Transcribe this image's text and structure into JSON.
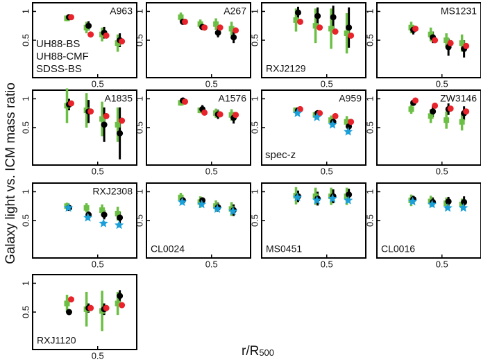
{
  "chart_data": {
    "type": "scatter",
    "ylabel": "Galaxy light vs. ICM mass ratio",
    "xlabel": {
      "main": "r/R",
      "sub": "500"
    },
    "x": [
      0.28,
      0.43,
      0.55,
      0.67
    ],
    "xlim": [
      0,
      0.8
    ],
    "xticks": [
      0.5
    ],
    "ylim": [
      -0.15,
      1.15
    ],
    "yticks": [
      1,
      0.5
    ],
    "series": [
      {
        "name": "UH88-BS",
        "color": "#000000",
        "marker": "circle",
        "legend_panel": 0
      },
      {
        "name": "UH88-CMF",
        "color": "#6cbf45",
        "marker": "square",
        "legend_panel": 0
      },
      {
        "name": "SDSS-BS",
        "color": "#e8232b",
        "marker": "circle",
        "legend_panel": 0
      },
      {
        "name": "spec-z",
        "color": "#1a9fd9",
        "marker": "star",
        "legend_panel": 6
      }
    ],
    "panels": [
      {
        "label": "A963",
        "label_corner": "top-right",
        "values": [
          [
            0.9,
            0.75,
            0.63,
            0.5
          ],
          [
            0.88,
            0.72,
            0.6,
            0.45
          ],
          [
            0.9,
            0.6,
            0.58,
            0.48
          ],
          null
        ],
        "errors": [
          [
            0.05,
            0.08,
            0.1,
            0.12
          ],
          [
            0.05,
            0.1,
            0.12,
            0.15
          ],
          null,
          null
        ]
      },
      {
        "label": "A267",
        "label_corner": "top-right",
        "values": [
          [
            0.82,
            0.73,
            0.63,
            0.55
          ],
          [
            0.9,
            0.78,
            0.78,
            0.7
          ],
          [
            0.82,
            0.72,
            0.72,
            0.67
          ],
          null
        ],
        "errors": [
          [
            0.04,
            0.05,
            0.08,
            0.1
          ],
          [
            0.08,
            0.08,
            0.1,
            0.12
          ],
          null,
          null
        ]
      },
      {
        "label": "RXJ2129",
        "label_corner": "bottom-left",
        "values": [
          [
            0.98,
            0.92,
            0.9,
            0.72
          ],
          [
            0.85,
            0.75,
            0.7,
            0.62
          ],
          [
            0.82,
            0.72,
            0.65,
            0.58
          ],
          null
        ],
        "errors": [
          [
            0.1,
            0.15,
            0.2,
            0.35
          ],
          [
            0.2,
            0.3,
            0.35,
            0.35
          ],
          null,
          null
        ]
      },
      {
        "label": "MS1231",
        "label_corner": "top-right",
        "values": [
          [
            0.68,
            0.55,
            0.38,
            0.35
          ],
          [
            0.72,
            0.6,
            0.5,
            0.45
          ],
          [
            0.7,
            0.5,
            0.45,
            0.4
          ],
          null
        ],
        "errors": [
          [
            0.08,
            0.1,
            0.15,
            0.15
          ],
          [
            0.1,
            0.12,
            0.12,
            0.15
          ],
          null,
          null
        ]
      },
      {
        "label": "A1835",
        "label_corner": "top-right",
        "values": [
          [
            0.9,
            0.78,
            0.55,
            0.4
          ],
          [
            0.88,
            0.8,
            0.65,
            0.55
          ],
          [
            0.92,
            0.78,
            0.7,
            0.62
          ],
          null
        ],
        "errors": [
          [
            0.1,
            0.2,
            0.3,
            0.45
          ],
          [
            0.3,
            0.3,
            0.3,
            0.3
          ],
          null,
          null
        ]
      },
      {
        "label": "A1576",
        "label_corner": "top-right",
        "values": [
          [
            0.97,
            0.82,
            0.73,
            0.67
          ],
          [
            0.93,
            0.8,
            0.75,
            0.72
          ],
          [
            0.95,
            0.76,
            0.73,
            0.72
          ],
          null
        ],
        "errors": [
          [
            0.05,
            0.07,
            0.08,
            0.1
          ],
          [
            0.05,
            0.05,
            0.08,
            0.1
          ],
          null,
          null
        ]
      },
      {
        "label": "A959",
        "label_corner": "top-right",
        "values": [
          [
            0.8,
            0.75,
            0.6,
            0.52
          ],
          [
            0.8,
            0.72,
            0.63,
            0.6
          ],
          [
            0.82,
            0.75,
            0.7,
            0.6
          ],
          [
            0.75,
            0.68,
            0.55,
            0.43
          ]
        ],
        "errors": [
          [
            0.04,
            0.05,
            0.06,
            0.08
          ],
          [
            0.05,
            0.06,
            0.08,
            0.1
          ],
          null,
          null
        ]
      },
      {
        "label": "ZW3146",
        "label_corner": "top-right",
        "values": [
          [
            0.93,
            0.78,
            0.82,
            0.75
          ],
          [
            0.82,
            0.7,
            0.63,
            0.6
          ],
          [
            0.97,
            0.88,
            0.83,
            0.78
          ],
          null
        ],
        "errors": [
          [
            0.05,
            0.1,
            0.1,
            0.12
          ],
          [
            0.08,
            0.12,
            0.15,
            0.15
          ],
          null,
          null
        ]
      },
      {
        "label": "RXJ2308",
        "label_corner": "top-right",
        "values": [
          [
            0.72,
            0.6,
            0.6,
            0.55
          ],
          [
            0.75,
            0.72,
            0.68,
            0.62
          ],
          null,
          [
            0.72,
            0.55,
            0.45,
            0.42
          ]
        ],
        "errors": [
          [
            0.05,
            0.06,
            0.08,
            0.1
          ],
          [
            0.06,
            0.08,
            0.1,
            0.12
          ],
          null,
          null
        ]
      },
      {
        "label": "CL0024",
        "label_corner": "bottom-left",
        "values": [
          [
            0.85,
            0.85,
            0.73,
            0.68
          ],
          [
            0.9,
            0.82,
            0.75,
            0.7
          ],
          null,
          [
            0.82,
            0.78,
            0.7,
            0.66
          ]
        ],
        "errors": [
          [
            0.05,
            0.05,
            0.08,
            0.1
          ],
          [
            0.08,
            0.1,
            0.1,
            0.12
          ],
          null,
          null
        ]
      },
      {
        "label": "MS0451",
        "label_corner": "bottom-left",
        "values": [
          [
            0.92,
            0.88,
            0.92,
            0.95
          ],
          [
            0.93,
            0.92,
            0.92,
            0.92
          ],
          null,
          [
            0.9,
            0.85,
            0.88,
            0.85
          ]
        ],
        "errors": [
          [
            0.1,
            0.12,
            0.12,
            0.1
          ],
          [
            0.15,
            0.15,
            0.15,
            0.15
          ],
          null,
          null
        ]
      },
      {
        "label": "CL0016",
        "label_corner": "bottom-left",
        "values": [
          [
            0.87,
            0.82,
            0.83,
            0.82
          ],
          [
            0.85,
            0.83,
            0.8,
            0.78
          ],
          null,
          [
            0.83,
            0.78,
            0.72,
            0.72
          ]
        ],
        "errors": [
          [
            0.06,
            0.08,
            0.08,
            0.1
          ],
          [
            0.1,
            0.1,
            0.1,
            0.1
          ],
          null,
          null
        ]
      },
      {
        "label": "RXJ1120",
        "label_corner": "bottom-left",
        "values": [
          [
            0.5,
            0.57,
            0.55,
            0.78
          ],
          [
            0.65,
            0.55,
            0.52,
            0.65
          ],
          [
            0.72,
            0.57,
            0.57,
            0.62
          ],
          null
        ],
        "errors": [
          [
            0.05,
            0.08,
            0.1,
            0.1
          ],
          [
            0.15,
            0.3,
            0.35,
            0.2
          ],
          null,
          null
        ]
      }
    ]
  }
}
